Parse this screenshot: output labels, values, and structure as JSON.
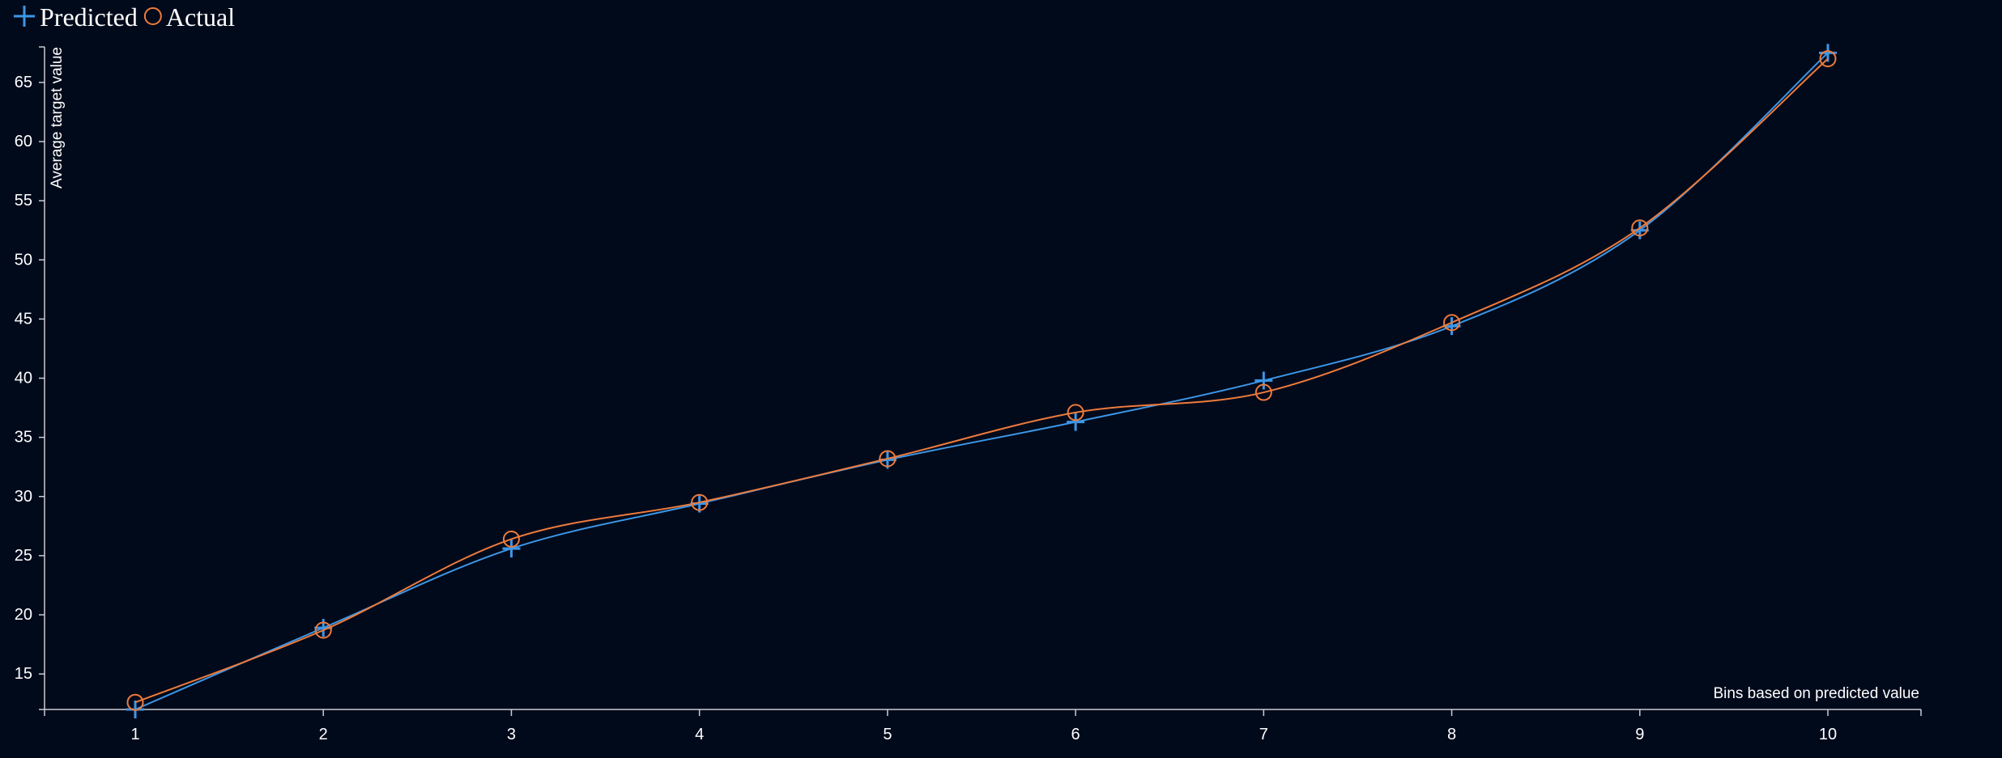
{
  "chart_data": {
    "type": "line",
    "title": "",
    "xlabel": "Bins based on predicted value",
    "ylabel": "Average target value",
    "categories": [
      "1",
      "2",
      "3",
      "4",
      "5",
      "6",
      "7",
      "8",
      "9",
      "10"
    ],
    "x": [
      1,
      2,
      3,
      4,
      5,
      6,
      7,
      8,
      9,
      10
    ],
    "xlim": [
      0.5,
      10.5
    ],
    "ylim": [
      12,
      68
    ],
    "yticks": [
      15,
      20,
      25,
      30,
      35,
      40,
      45,
      50,
      55,
      60,
      65
    ],
    "grid": false,
    "legend": "top-left",
    "series": [
      {
        "name": "Predicted",
        "marker": "plus",
        "color": "#3d96e6",
        "values": [
          12.0,
          18.9,
          25.6,
          29.4,
          33.1,
          36.3,
          39.8,
          44.4,
          52.5,
          67.5
        ]
      },
      {
        "name": "Actual",
        "marker": "circle",
        "color": "#ee7b3c",
        "values": [
          12.6,
          18.7,
          26.4,
          29.5,
          33.2,
          37.1,
          38.8,
          44.7,
          52.7,
          67.0
        ]
      }
    ]
  }
}
